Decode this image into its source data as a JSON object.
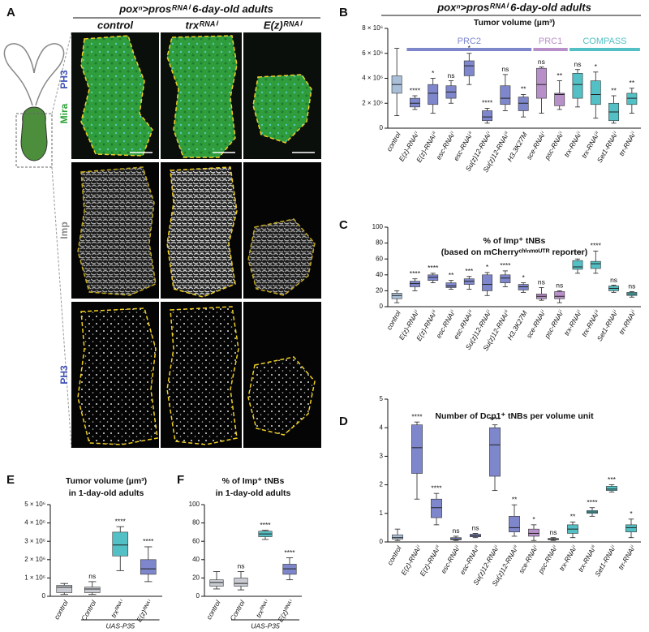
{
  "panel_a": {
    "letter": "A",
    "title": "poxⁿ>prosᴿᴺᴬⁱ 6-day-old adults",
    "columns": [
      "control",
      "trxᴿᴺᴬⁱ",
      "E(z)ᴿᴺᴬⁱ"
    ],
    "row_labels": [
      "Mira",
      "PH3",
      "Imp",
      "PH3"
    ]
  },
  "chart_data": [
    {
      "type": "box",
      "letter": "B",
      "header": "poxⁿ>prosᴿᴺᴬⁱ 6-day-old adults",
      "title": [
        "Tumor volume (µm³)"
      ],
      "categories": [
        "control",
        "E(z)-RNAiⁱ",
        "E(z)-RNAiⁱⁱ",
        "esc-RNAiⁱ",
        "esc-RNAiⁱⁱ",
        "Su(z)12-RNAiⁱ",
        "Su(z)12-RNAiⁱⁱ",
        "H3.3K27M",
        "sce-RNAiⁱ",
        "psc-RNAiⁱ",
        "trx-RNAiⁱ",
        "trx-RNAiⁱⁱ",
        "Set1-RNAiⁱ",
        "trr-RNAiⁱ"
      ],
      "colors": [
        "#a9bfd8",
        "#7e87cc",
        "#7e87cc",
        "#7e87cc",
        "#7e87cc",
        "#7e87cc",
        "#7e87cc",
        "#7e87cc",
        "#b890c9",
        "#b890c9",
        "#52c0c4",
        "#52c0c4",
        "#52c0c4",
        "#52c0c4"
      ],
      "boxes": [
        {
          "min": 1000000,
          "q1": 2800000,
          "median": 3500000,
          "q3": 4200000,
          "max": 6400000
        },
        {
          "min": 1500000,
          "q1": 1700000,
          "median": 2000000,
          "q3": 2400000,
          "max": 2600000
        },
        {
          "min": 1200000,
          "q1": 1900000,
          "median": 2800000,
          "q3": 3500000,
          "max": 4000000
        },
        {
          "min": 2000000,
          "q1": 2400000,
          "median": 2900000,
          "q3": 3400000,
          "max": 3800000
        },
        {
          "min": 3500000,
          "q1": 4200000,
          "median": 5000000,
          "q3": 5400000,
          "max": 6000000
        },
        {
          "min": 400000,
          "q1": 600000,
          "median": 900000,
          "q3": 1400000,
          "max": 1600000
        },
        {
          "min": 1400000,
          "q1": 1900000,
          "median": 2400000,
          "q3": 3400000,
          "max": 4300000
        },
        {
          "min": 900000,
          "q1": 1400000,
          "median": 2000000,
          "q3": 2500000,
          "max": 2700000
        },
        {
          "min": 1200000,
          "q1": 2400000,
          "median": 3500000,
          "q3": 4800000,
          "max": 4900000
        },
        {
          "min": 1500000,
          "q1": 1800000,
          "median": 2700000,
          "q3": 2800000,
          "max": 3800000
        },
        {
          "min": 1700000,
          "q1": 2400000,
          "median": 3500000,
          "q3": 4400000,
          "max": 4700000
        },
        {
          "min": 800000,
          "q1": 1900000,
          "median": 2700000,
          "q3": 3800000,
          "max": 4500000
        },
        {
          "min": 400000,
          "q1": 600000,
          "median": 1300000,
          "q3": 2000000,
          "max": 2600000
        },
        {
          "min": 1200000,
          "q1": 1900000,
          "median": 2400000,
          "q3": 2800000,
          "max": 3200000
        }
      ],
      "significance": [
        null,
        "****",
        "*",
        "ns",
        "*",
        "****",
        "ns",
        "**",
        "ns",
        "**",
        "ns",
        "*",
        "**",
        "**"
      ],
      "groups": [
        {
          "name": "PRC2",
          "color": "#7e87cc",
          "from": "E(z)-RNAiⁱ",
          "to": "H3.3K27M"
        },
        {
          "name": "PRC1",
          "color": "#b890c9",
          "from": "sce-RNAiⁱ",
          "to": "psc-RNAiⁱ"
        },
        {
          "name": "COMPASS",
          "color": "#52c0c4",
          "from": "trx-RNAiⁱ",
          "to": "trr-RNAiⁱ"
        }
      ],
      "ylim": [
        0,
        8000000
      ],
      "yticks": [
        0,
        {
          "value": 2000000,
          "label": "2 × 10⁶"
        },
        {
          "value": 4000000,
          "label": "4 × 10⁶"
        },
        {
          "value": 6000000,
          "label": "6 × 10⁶"
        },
        {
          "value": 8000000,
          "label": "8 × 10⁶"
        }
      ]
    },
    {
      "type": "box",
      "letter": "C",
      "title": [
        "% of Imp⁺ tNBs",
        "(based on mCherryᶜʰⁱⁿᵐᵒᵁᵀᴿ reporter)"
      ],
      "categories": [
        "control",
        "E(z)-RNAiⁱ",
        "E(z)-RNAiⁱⁱ",
        "esc-RNAiⁱ",
        "esc-RNAiⁱⁱ",
        "Su(z)12-RNAiⁱ",
        "Su(z)12-RNAiⁱⁱ",
        "H3.3K27M",
        "sce-RNAiⁱ",
        "psc-RNAiⁱ",
        "trx-RNAiⁱ",
        "trx-RNAiⁱⁱ",
        "Set1-RNAiⁱ",
        "trr-RNAiⁱ"
      ],
      "colors": [
        "#a9bfd8",
        "#7e87cc",
        "#7e87cc",
        "#7e87cc",
        "#7e87cc",
        "#7e87cc",
        "#7e87cc",
        "#7e87cc",
        "#b890c9",
        "#b890c9",
        "#52c0c4",
        "#52c0c4",
        "#52c0c4",
        "#52c0c4"
      ],
      "boxes": [
        {
          "min": 5,
          "q1": 10,
          "median": 14,
          "q3": 17,
          "max": 20
        },
        {
          "min": 20,
          "q1": 25,
          "median": 29,
          "q3": 32,
          "max": 35
        },
        {
          "min": 30,
          "q1": 33,
          "median": 37,
          "q3": 40,
          "max": 42
        },
        {
          "min": 22,
          "q1": 24,
          "median": 26,
          "q3": 30,
          "max": 33
        },
        {
          "min": 22,
          "q1": 28,
          "median": 32,
          "q3": 35,
          "max": 38
        },
        {
          "min": 14,
          "q1": 20,
          "median": 28,
          "q3": 40,
          "max": 43
        },
        {
          "min": 25,
          "q1": 30,
          "median": 36,
          "q3": 40,
          "max": 45
        },
        {
          "min": 18,
          "q1": 21,
          "median": 25,
          "q3": 28,
          "max": 30
        },
        {
          "min": 8,
          "q1": 10,
          "median": 13,
          "q3": 16,
          "max": 24
        },
        {
          "min": 5,
          "q1": 10,
          "median": 13,
          "q3": 19,
          "max": 20
        },
        {
          "min": 42,
          "q1": 47,
          "median": 50,
          "q3": 58,
          "max": 60
        },
        {
          "min": 42,
          "q1": 48,
          "median": 54,
          "q3": 57,
          "max": 70
        },
        {
          "min": 18,
          "q1": 20,
          "median": 23,
          "q3": 26,
          "max": 27
        },
        {
          "min": 12,
          "q1": 14,
          "median": 16,
          "q3": 18,
          "max": 19
        }
      ],
      "significance": [
        null,
        "****",
        "****",
        "**",
        "***",
        "*",
        "****",
        "*",
        "ns",
        "ns",
        "***",
        "****",
        "ns",
        "ns"
      ],
      "ylim": [
        0,
        100
      ],
      "yticks": [
        0,
        20,
        40,
        60,
        80,
        100
      ]
    },
    {
      "type": "box",
      "letter": "D",
      "title": [
        "Number of Dcp1⁺ tNBs per volume unit"
      ],
      "categories": [
        "control",
        "E(z)-RNAiⁱ",
        "E(z)-RNAiⁱⁱ",
        "esc-RNAiⁱ",
        "esc-RNAiⁱⁱ",
        "Su(z)12-RNAiⁱ",
        "Su(z)12-RNAiⁱⁱ",
        "sce-RNAiⁱ",
        "psc-RNAiⁱ",
        "trx-RNAiⁱ",
        "trx-RNAiⁱⁱ",
        "Set1-RNAiⁱ",
        "trr-RNAiⁱ"
      ],
      "colors": [
        "#a9bfd8",
        "#7e87cc",
        "#7e87cc",
        "#7e87cc",
        "#7e87cc",
        "#7e87cc",
        "#7e87cc",
        "#b890c9",
        "#b890c9",
        "#52c0c4",
        "#52c0c4",
        "#52c0c4",
        "#52c0c4"
      ],
      "boxes": [
        {
          "min": 0.05,
          "q1": 0.1,
          "median": 0.15,
          "q3": 0.25,
          "max": 0.45
        },
        {
          "min": 1.5,
          "q1": 2.4,
          "median": 3.3,
          "q3": 4.1,
          "max": 4.2
        },
        {
          "min": 0.6,
          "q1": 0.85,
          "median": 1.2,
          "q3": 1.5,
          "max": 1.7
        },
        {
          "min": 0.05,
          "q1": 0.08,
          "median": 0.1,
          "q3": 0.15,
          "max": 0.2
        },
        {
          "min": 0.15,
          "q1": 0.18,
          "median": 0.22,
          "q3": 0.27,
          "max": 0.3
        },
        {
          "min": 1.8,
          "q1": 2.3,
          "median": 3.4,
          "q3": 4.0,
          "max": 4.1
        },
        {
          "min": 0.2,
          "q1": 0.35,
          "median": 0.5,
          "q3": 0.9,
          "max": 1.3
        },
        {
          "min": 0.05,
          "q1": 0.2,
          "median": 0.3,
          "q3": 0.45,
          "max": 0.6
        },
        {
          "min": 0.05,
          "q1": 0.08,
          "median": 0.1,
          "q3": 0.12,
          "max": 0.15
        },
        {
          "min": 0.15,
          "q1": 0.3,
          "median": 0.45,
          "q3": 0.6,
          "max": 0.7
        },
        {
          "min": 0.9,
          "q1": 1.0,
          "median": 1.05,
          "q3": 1.1,
          "max": 1.2
        },
        {
          "min": 1.75,
          "q1": 1.8,
          "median": 1.85,
          "q3": 1.95,
          "max": 2.0
        },
        {
          "min": 0.15,
          "q1": 0.35,
          "median": 0.5,
          "q3": 0.6,
          "max": 0.8
        }
      ],
      "significance": [
        null,
        "****",
        "****",
        "ns",
        "ns",
        "****",
        "**",
        "*",
        "ns",
        "**",
        "****",
        "***",
        "*"
      ],
      "ylim": [
        0,
        5
      ],
      "yticks": [
        0,
        1,
        2,
        3,
        4,
        5
      ]
    },
    {
      "type": "box",
      "letter": "E",
      "title": [
        "Tumor volume (µm³)",
        "in 1-day-old adults"
      ],
      "categories": [
        "control",
        "Control",
        "trxᴿᴺᴬⁱ",
        "E(z)ᴿᴺᴬⁱ"
      ],
      "colors": [
        "#c8ccd2",
        "#c8ccd2",
        "#52c0c4",
        "#7e87cc"
      ],
      "boxes": [
        {
          "min": 100000,
          "q1": 200000,
          "median": 500000,
          "q3": 600000,
          "max": 700000
        },
        {
          "min": 100000,
          "q1": 200000,
          "median": 400000,
          "q3": 500000,
          "max": 800000
        },
        {
          "min": 1400000,
          "q1": 2200000,
          "median": 2800000,
          "q3": 3500000,
          "max": 3800000
        },
        {
          "min": 800000,
          "q1": 1200000,
          "median": 1500000,
          "q3": 2000000,
          "max": 2700000
        }
      ],
      "significance": [
        null,
        "ns",
        "****",
        "****"
      ],
      "group_label": {
        "name": "UAS-P35",
        "from": "Control",
        "to": "E(z)ᴿᴺᴬⁱ"
      },
      "ylim": [
        0,
        5000000
      ],
      "yticks": [
        0,
        {
          "value": 1000000,
          "label": "1 × 10⁶"
        },
        {
          "value": 2000000,
          "label": "2 × 10⁶"
        },
        {
          "value": 3000000,
          "label": "3 × 10⁶"
        },
        {
          "value": 4000000,
          "label": "4 × 10⁶"
        },
        {
          "value": 5000000,
          "label": "5 × 10⁶"
        }
      ]
    },
    {
      "type": "box",
      "letter": "F",
      "title": [
        "% of Imp⁺ tNBs",
        "in 1-day-old adults"
      ],
      "categories": [
        "control",
        "Control",
        "trxᴿᴺᴬⁱ",
        "E(z)ᴿᴺᴬⁱ"
      ],
      "colors": [
        "#c8ccd2",
        "#c8ccd2",
        "#52c0c4",
        "#7e87cc"
      ],
      "boxes": [
        {
          "min": 8,
          "q1": 11,
          "median": 15,
          "q3": 18,
          "max": 27
        },
        {
          "min": 7,
          "q1": 11,
          "median": 14,
          "q3": 20,
          "max": 27
        },
        {
          "min": 62,
          "q1": 65,
          "median": 68,
          "q3": 71,
          "max": 72
        },
        {
          "min": 18,
          "q1": 24,
          "median": 30,
          "q3": 35,
          "max": 42
        }
      ],
      "significance": [
        null,
        "ns",
        "****",
        "****"
      ],
      "group_label": {
        "name": "UAS-P35",
        "from": "Control",
        "to": "E(z)ᴿᴺᴬⁱ"
      },
      "ylim": [
        0,
        100
      ],
      "yticks": [
        0,
        20,
        40,
        60,
        80,
        100
      ]
    }
  ]
}
